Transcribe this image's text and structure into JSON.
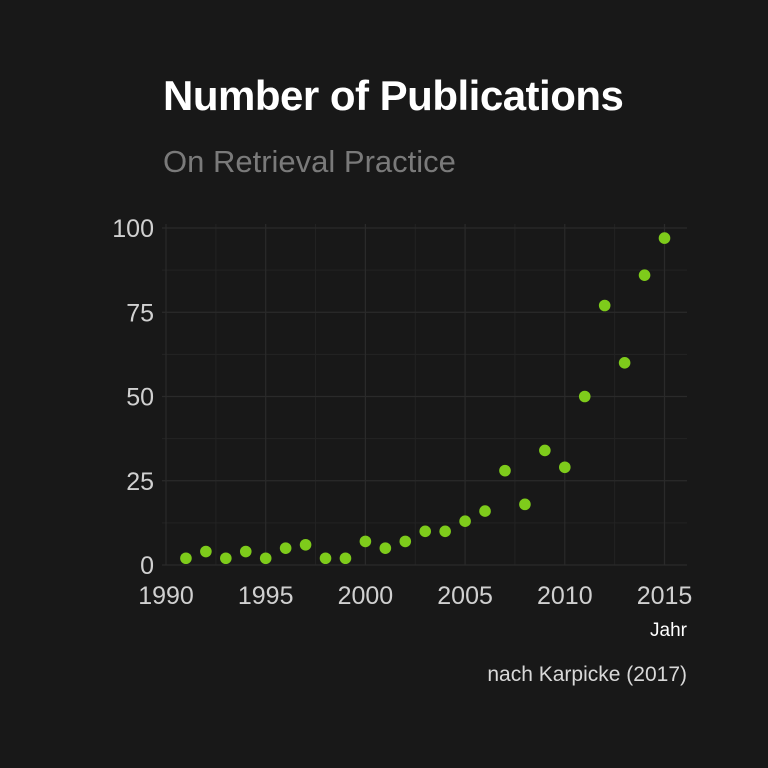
{
  "chart_data": {
    "type": "scatter",
    "title": "Number of Publications",
    "subtitle": "On Retrieval Practice",
    "caption": "nach Karpicke (2017)",
    "xlabel": "Jahr",
    "ylabel": "",
    "xlim": [
      1990,
      2016
    ],
    "ylim": [
      0,
      100
    ],
    "x_ticks": [
      1990,
      1995,
      2000,
      2005,
      2010,
      2015
    ],
    "y_ticks": [
      0,
      25,
      50,
      75,
      100
    ],
    "grid": true,
    "point_color": "#7ecb1b",
    "background": "#181818",
    "x": [
      1991,
      1992,
      1993,
      1994,
      1995,
      1996,
      1997,
      1998,
      1999,
      2000,
      2001,
      2002,
      2003,
      2004,
      2005,
      2006,
      2007,
      2008,
      2009,
      2010,
      2011,
      2012,
      2013,
      2014,
      2015
    ],
    "y": [
      2,
      4,
      2,
      4,
      2,
      5,
      6,
      2,
      2,
      7,
      5,
      7,
      10,
      10,
      13,
      16,
      28,
      18,
      34,
      29,
      50,
      77,
      60,
      86,
      97
    ]
  }
}
